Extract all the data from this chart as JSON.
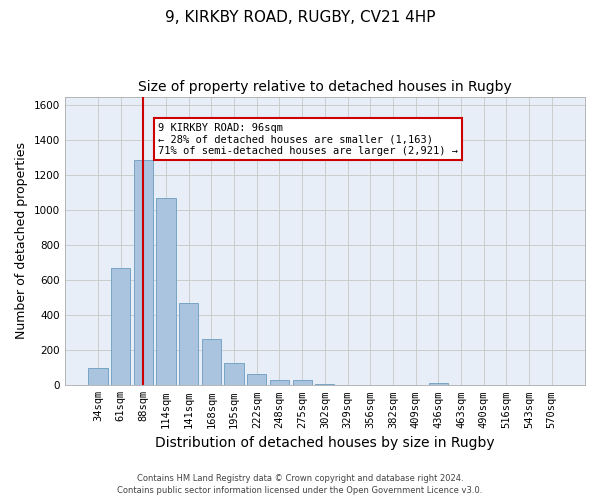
{
  "title": "9, KIRKBY ROAD, RUGBY, CV21 4HP",
  "subtitle": "Size of property relative to detached houses in Rugby",
  "xlabel": "Distribution of detached houses by size in Rugby",
  "ylabel": "Number of detached properties",
  "footer": "Contains HM Land Registry data © Crown copyright and database right 2024.\nContains public sector information licensed under the Open Government Licence v3.0.",
  "categories": [
    "34sqm",
    "61sqm",
    "88sqm",
    "114sqm",
    "141sqm",
    "168sqm",
    "195sqm",
    "222sqm",
    "248sqm",
    "275sqm",
    "302sqm",
    "329sqm",
    "356sqm",
    "382sqm",
    "409sqm",
    "436sqm",
    "463sqm",
    "490sqm",
    "516sqm",
    "543sqm",
    "570sqm"
  ],
  "values": [
    97,
    668,
    1290,
    1068,
    468,
    265,
    128,
    65,
    30,
    33,
    8,
    0,
    0,
    0,
    0,
    14,
    0,
    0,
    0,
    0,
    0
  ],
  "bar_color": "#aac4e0",
  "bar_edge_color": "#6a9dc0",
  "vline_x": 2,
  "vline_color": "#cc0000",
  "ylim": [
    0,
    1650
  ],
  "yticks": [
    0,
    200,
    400,
    600,
    800,
    1000,
    1200,
    1400,
    1600
  ],
  "annotation_text": "9 KIRKBY ROAD: 96sqm\n← 28% of detached houses are smaller (1,163)\n71% of semi-detached houses are larger (2,921) →",
  "annotation_box_color": "#ffffff",
  "annotation_box_edge": "#cc0000",
  "grid_color": "#cccccc",
  "bg_color": "#e8eef8",
  "title_fontsize": 11,
  "subtitle_fontsize": 10,
  "axis_label_fontsize": 9,
  "tick_fontsize": 7.5,
  "annotation_fontsize": 7.5,
  "footer_fontsize": 6
}
